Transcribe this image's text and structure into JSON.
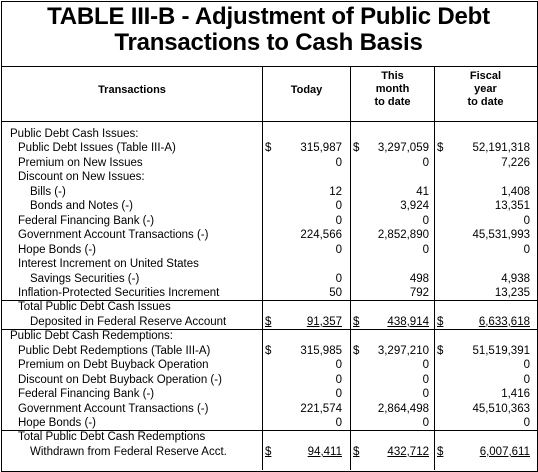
{
  "title": [
    "TABLE III-B - Adjustment of Public Debt",
    "Transactions to Cash Basis"
  ],
  "headers": {
    "transactions": "Transactions",
    "today": "Today",
    "month": [
      "This",
      "month",
      "to date"
    ],
    "fiscal": [
      "Fiscal",
      "year",
      "to date"
    ]
  },
  "rows": [
    {
      "label": "Public Debt Cash Issues:",
      "indent": 0
    },
    {
      "label": "Public Debt Issues (Table III-A)",
      "indent": 1,
      "dollar": true,
      "today": "315,987",
      "month": "3,297,059",
      "fiscal": "52,191,318"
    },
    {
      "label": "Premium on New Issues",
      "indent": 1,
      "today": "0",
      "month": "0",
      "fiscal": "7,226"
    },
    {
      "label": "Discount on New Issues:",
      "indent": 1
    },
    {
      "label": "Bills (-)",
      "indent": 2,
      "today": "12",
      "month": "41",
      "fiscal": "1,408"
    },
    {
      "label": "Bonds and Notes (-)",
      "indent": 2,
      "today": "0",
      "month": "3,924",
      "fiscal": "13,351"
    },
    {
      "label": "Federal Financing Bank (-)",
      "indent": 1,
      "today": "0",
      "month": "0",
      "fiscal": "0"
    },
    {
      "label": "Government Account Transactions (-)",
      "indent": 1,
      "today": "224,566",
      "month": "2,852,890",
      "fiscal": "45,531,993"
    },
    {
      "label": "Hope Bonds (-)",
      "indent": 1,
      "today": "0",
      "month": "0",
      "fiscal": "0"
    },
    {
      "label": "Interest Increment on United States",
      "indent": 1
    },
    {
      "label": "Savings Securities (-)",
      "indent": 2,
      "today": "0",
      "month": "498",
      "fiscal": "4,938"
    },
    {
      "label": "Inflation-Protected Securities Increment",
      "indent": 1,
      "today": "50",
      "month": "792",
      "fiscal": "13,235"
    },
    {
      "label": "Total Public Debt Cash Issues",
      "indent": 1
    },
    {
      "label": "Deposited in Federal Reserve Account",
      "indent": 2,
      "dollar": true,
      "total": true,
      "today": "91,357",
      "month": "438,914",
      "fiscal": "6,633,618"
    },
    {
      "label": "Public Debt Cash Redemptions:",
      "indent": 0
    },
    {
      "label": "Public Debt Redemptions (Table III-A)",
      "indent": 1,
      "dollar": true,
      "today": "315,985",
      "month": "3,297,210",
      "fiscal": "51,519,391"
    },
    {
      "label": "Premium on Debt Buyback Operation",
      "indent": 1,
      "today": "0",
      "month": "0",
      "fiscal": "0"
    },
    {
      "label": "Discount on Debt Buyback Operation (-)",
      "indent": 1,
      "today": "0",
      "month": "0",
      "fiscal": "0"
    },
    {
      "label": "Federal Financing Bank (-)",
      "indent": 1,
      "today": "0",
      "month": "0",
      "fiscal": "1,416"
    },
    {
      "label": "Government Account Transactions (-)",
      "indent": 1,
      "today": "221,574",
      "month": "2,864,498",
      "fiscal": "45,510,363"
    },
    {
      "label": "Hope Bonds (-)",
      "indent": 1,
      "today": "0",
      "month": "0",
      "fiscal": "0"
    },
    {
      "label": "Total Public Debt Cash Redemptions",
      "indent": 1
    },
    {
      "label": "Withdrawn from Federal Reserve Acct.",
      "indent": 2,
      "dollar": true,
      "total": true,
      "today": "94,411",
      "month": "432,712",
      "fiscal": "6,007,611"
    }
  ],
  "dollar_sign": "$"
}
